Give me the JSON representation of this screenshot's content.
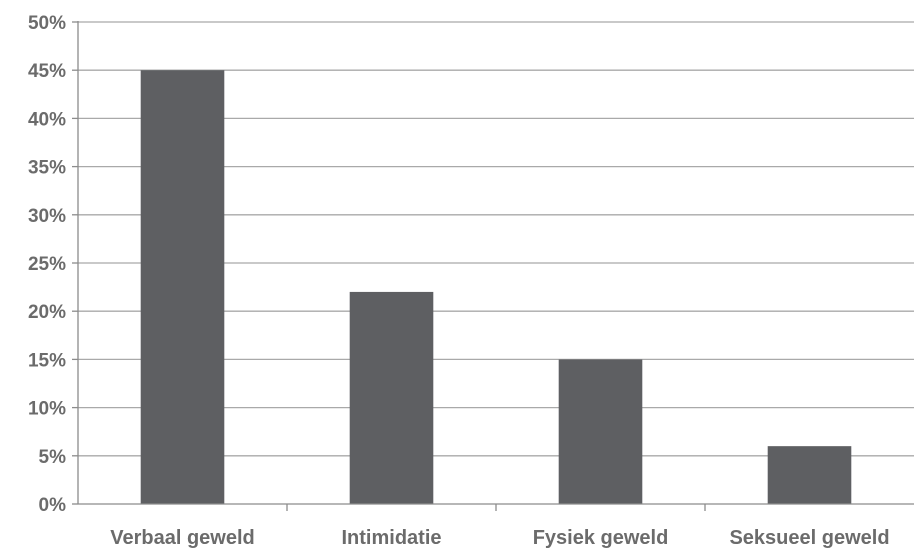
{
  "chart_data": {
    "type": "bar",
    "title": "",
    "xlabel": "",
    "ylabel": "",
    "categories": [
      "Verbaal geweld",
      "Intimidatie",
      "Fysiek geweld",
      "Seksueel geweld"
    ],
    "values": [
      45,
      22,
      15,
      6
    ],
    "ylim": [
      0,
      50
    ],
    "yticks": [
      0,
      5,
      10,
      15,
      20,
      25,
      30,
      35,
      40,
      45,
      50
    ],
    "ytick_labels": [
      "0%",
      "5%",
      "10%",
      "15%",
      "20%",
      "25%",
      "30%",
      "35%",
      "40%",
      "45%",
      "50%"
    ],
    "grid": true,
    "legend": "none",
    "colors": {
      "bar": "#5e5f62",
      "grid": "#a9a9a9",
      "axis": "#8c8c8c",
      "text": "#6b6b6b"
    }
  }
}
